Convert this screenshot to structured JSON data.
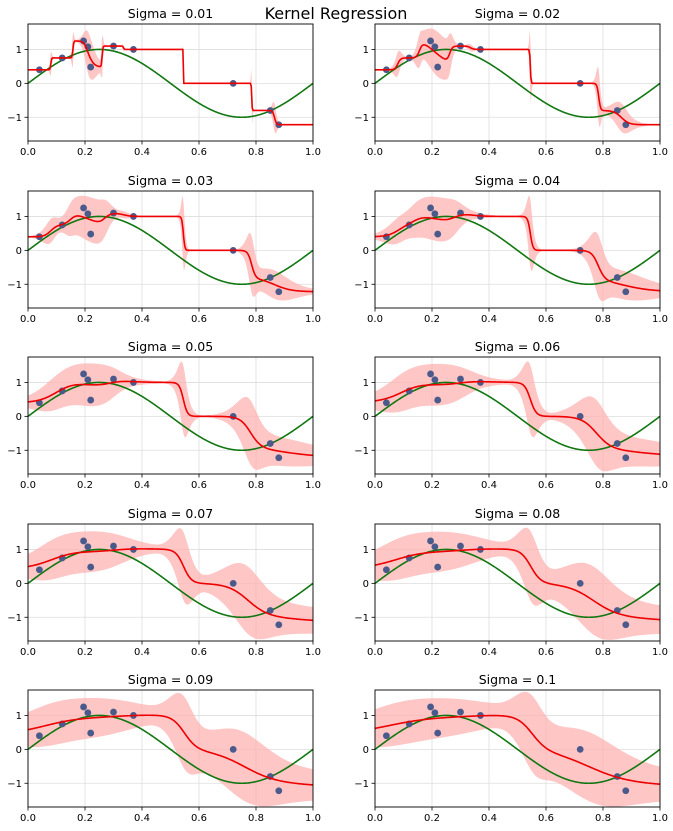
{
  "figure": {
    "suptitle": "Kernel Regression",
    "colors": {
      "points": "#4a5a8a",
      "fit": "#ee0000",
      "band": "#ffb3b3",
      "truth": "#117711",
      "grid": "#dddddd"
    }
  },
  "chart_data": {
    "type": "line",
    "xlim": [
      0,
      1
    ],
    "ylim": [
      -1.7,
      1.75
    ],
    "xticks": [
      0,
      0.2,
      0.4,
      0.6,
      0.8,
      1
    ],
    "xtick_labels": [
      "0.0",
      "0.2",
      "0.4",
      "0.6",
      "0.8",
      "1.0"
    ],
    "yticks": [
      -1,
      0,
      1
    ],
    "ytick_labels": [
      "−1",
      "0",
      "1"
    ],
    "grid": true,
    "points": {
      "x": [
        0.04,
        0.12,
        0.195,
        0.21,
        0.22,
        0.3,
        0.37,
        0.72,
        0.85,
        0.88
      ],
      "y": [
        0.4,
        0.75,
        1.25,
        1.08,
        0.48,
        1.1,
        1.0,
        0.0,
        -0.8,
        -1.22
      ]
    },
    "true_function": "sin(2*pi*x)",
    "subplots": [
      {
        "title": "Sigma = 0.01",
        "sigma": 0.01
      },
      {
        "title": "Sigma = 0.02",
        "sigma": 0.02
      },
      {
        "title": "Sigma = 0.03",
        "sigma": 0.03
      },
      {
        "title": "Sigma = 0.04",
        "sigma": 0.04
      },
      {
        "title": "Sigma = 0.05",
        "sigma": 0.05
      },
      {
        "title": "Sigma = 0.06",
        "sigma": 0.06
      },
      {
        "title": "Sigma = 0.07",
        "sigma": 0.07
      },
      {
        "title": "Sigma = 0.08",
        "sigma": 0.08
      },
      {
        "title": "Sigma = 0.09",
        "sigma": 0.09
      },
      {
        "title": "Sigma = 0.1",
        "sigma": 0.1
      }
    ]
  }
}
